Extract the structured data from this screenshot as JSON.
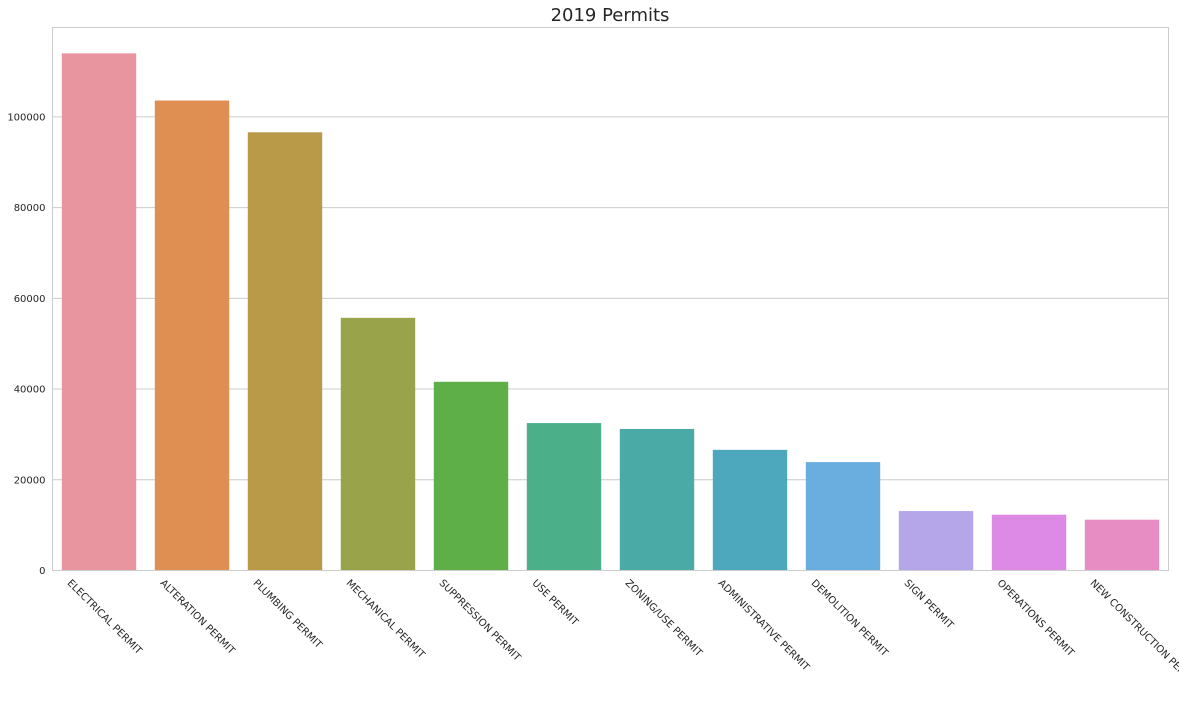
{
  "chart_data": {
    "type": "bar",
    "title": "2019 Permits",
    "xlabel": "",
    "ylabel": "",
    "categories": [
      "ELECTRICAL PERMIT",
      "ALTERATION PERMIT",
      "PLUMBING PERMIT",
      "MECHANICAL PERMIT",
      "SUPPRESSION PERMIT",
      "USE PERMIT",
      "ZONING/USE PERMIT",
      "ADMINISTRATIVE PERMIT",
      "DEMOLITION PERMIT",
      "SIGN PERMIT",
      "OPERATIONS PERMIT",
      "NEW CONSTRUCTION PERMIT"
    ],
    "values": [
      114000,
      103600,
      96600,
      55700,
      41600,
      32500,
      31200,
      26600,
      23900,
      13100,
      12300,
      11200
    ],
    "colors": [
      "#e8959f",
      "#e08f53",
      "#b89a48",
      "#98a34a",
      "#5eaf48",
      "#4bb08a",
      "#4aaaa6",
      "#4da8bd",
      "#6aaee0",
      "#b5a6ea",
      "#dc8ae6",
      "#e88cc4"
    ],
    "yticks": [
      0,
      20000,
      40000,
      60000,
      80000,
      100000
    ],
    "ylim": [
      0,
      119700
    ],
    "grid": true,
    "legend": "none"
  }
}
